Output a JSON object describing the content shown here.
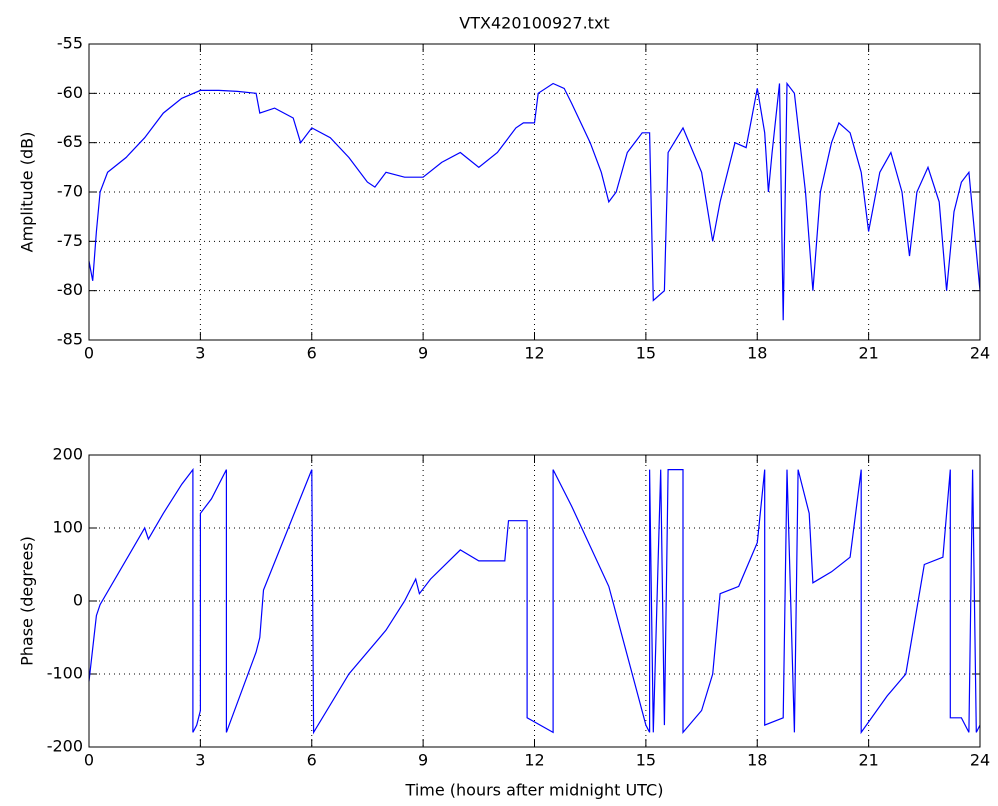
{
  "chart_data": [
    {
      "type": "line",
      "title": "VTX420100927.txt",
      "ylabel": "Amplitude (dB)",
      "color": "#0000ff",
      "grid": true,
      "xlim": [
        0,
        24
      ],
      "xticks": [
        0,
        3,
        6,
        9,
        12,
        15,
        18,
        21,
        24
      ],
      "ylim": [
        -85,
        -55
      ],
      "yticks": [
        -85,
        -80,
        -75,
        -70,
        -65,
        -60,
        -55
      ],
      "x": [
        0,
        0.1,
        0.2,
        0.3,
        0.5,
        1,
        1.5,
        2,
        2.5,
        3,
        3.5,
        4,
        4.5,
        4.6,
        5,
        5.5,
        5.7,
        6,
        6.5,
        7,
        7.5,
        7.7,
        8,
        8.5,
        9,
        9.5,
        10,
        10.5,
        11,
        11.5,
        11.7,
        12,
        12.1,
        12.5,
        12.8,
        13,
        13.5,
        13.8,
        14,
        14.2,
        14.5,
        14.9,
        15.1,
        15.2,
        15.5,
        15.6,
        16,
        16.5,
        16.8,
        17,
        17.4,
        17.7,
        18,
        18.2,
        18.3,
        18.4,
        18.6,
        18.7,
        18.8,
        19,
        19.3,
        19.5,
        19.7,
        20,
        20.2,
        20.5,
        20.8,
        21,
        21.3,
        21.6,
        21.9,
        22.1,
        22.3,
        22.6,
        22.9,
        23.1,
        23.3,
        23.5,
        23.7,
        24
      ],
      "values": [
        -77,
        -79,
        -74,
        -70,
        -68,
        -66.5,
        -64.5,
        -62,
        -60.5,
        -59.7,
        -59.7,
        -59.8,
        -60,
        -62,
        -61.5,
        -62.5,
        -65,
        -63.5,
        -64.5,
        -66.5,
        -69,
        -69.5,
        -68,
        -68.5,
        -68.5,
        -67,
        -66,
        -67.5,
        -66,
        -63.5,
        -63,
        -63,
        -60,
        -59,
        -59.5,
        -61,
        -65,
        -68,
        -71,
        -70,
        -66,
        -64,
        -64,
        -81,
        -80,
        -66,
        -63.5,
        -68,
        -75,
        -71,
        -65,
        -65.5,
        -59.5,
        -64,
        -70,
        -66,
        -59,
        -83,
        -59,
        -60,
        -70,
        -80,
        -70,
        -65,
        -63,
        -64,
        -68,
        -74,
        -68,
        -66,
        -70,
        -76.5,
        -70,
        -67.5,
        -71,
        -80,
        -72,
        -69,
        -68,
        -80
      ]
    },
    {
      "type": "line",
      "ylabel": "Phase (degrees)",
      "xlabel": "Time (hours after midnight UTC)",
      "color": "#0000ff",
      "grid": true,
      "xlim": [
        0,
        24
      ],
      "xticks": [
        0,
        3,
        6,
        9,
        12,
        15,
        18,
        21,
        24
      ],
      "ylim": [
        -200,
        200
      ],
      "yticks": [
        -200,
        -100,
        0,
        100,
        200
      ],
      "x": [
        0,
        0.2,
        0.3,
        1.5,
        1.6,
        2,
        2.5,
        2.8,
        2.8,
        2.9,
        3.0,
        3.0,
        3.3,
        3.7,
        3.7,
        4.5,
        4.6,
        4.7,
        6,
        6.05,
        7,
        8,
        8.5,
        8.8,
        8.9,
        9.2,
        10,
        10.5,
        11.2,
        11.3,
        11.8,
        11.8,
        12.5,
        12.5,
        13,
        14,
        15,
        15.1,
        15.1,
        15.2,
        15.4,
        15.5,
        15.6,
        16,
        16,
        16.5,
        16.8,
        17,
        17.5,
        18,
        18.2,
        18.2,
        18.7,
        18.8,
        19,
        19.1,
        19.4,
        19.5,
        20,
        20.5,
        20.8,
        20.8,
        21.5,
        22,
        22.5,
        23,
        23.2,
        23.2,
        23.5,
        23.7,
        23.8,
        23.9,
        24
      ],
      "values": [
        -110,
        -20,
        -5,
        100,
        85,
        120,
        160,
        180,
        -180,
        -170,
        -150,
        120,
        140,
        180,
        -180,
        -70,
        -50,
        15,
        180,
        -180,
        -100,
        -40,
        0,
        30,
        10,
        30,
        70,
        55,
        55,
        110,
        110,
        -160,
        -180,
        180,
        130,
        20,
        -170,
        -180,
        180,
        -180,
        180,
        -170,
        180,
        180,
        -180,
        -150,
        -100,
        10,
        20,
        80,
        180,
        -170,
        -160,
        180,
        -180,
        180,
        120,
        25,
        40,
        60,
        180,
        -180,
        -130,
        -100,
        50,
        60,
        180,
        -160,
        -160,
        -180,
        180,
        -180,
        -170
      ]
    }
  ]
}
